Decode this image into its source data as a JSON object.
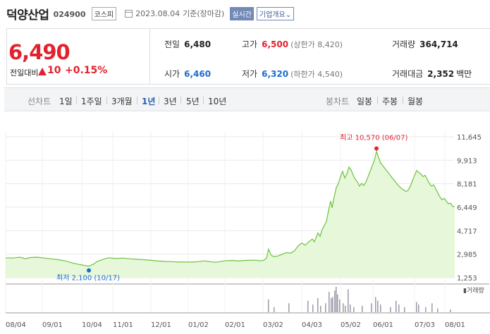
{
  "header": {
    "name": "덕양산업",
    "code": "024900",
    "market": "코스피",
    "date": "2023.08.04",
    "basis": "기준(장마감)",
    "realtime_label": "실시간",
    "company_label": "기업개요"
  },
  "price": {
    "current": "6,490",
    "prev_label": "전일대비",
    "change": "10",
    "change_pct": "+0.15%"
  },
  "stats": {
    "prev_close_label": "전일",
    "prev_close": "6,480",
    "high_label": "고가",
    "high": "6,500",
    "upper_limit": "(상한가 8,420)",
    "volume_label": "거래량",
    "volume": "364,714",
    "open_label": "시가",
    "open": "6,460",
    "low_label": "저가",
    "low": "6,320",
    "lower_limit": "(하한가 4,540)",
    "amount_label": "거래대금",
    "amount": "2,352",
    "amount_unit": "백만"
  },
  "period_bar": {
    "line_label": "선차트",
    "periods": [
      "1일",
      "1주일",
      "3개월",
      "1년",
      "3년",
      "5년",
      "10년"
    ],
    "active": "1년",
    "candle_label": "봉차트",
    "candles": [
      "일봉",
      "주봉",
      "월봉"
    ]
  },
  "chart_data": {
    "type": "area",
    "yticks": [
      "11,645",
      "9,913",
      "8,181",
      "6,449",
      "4,717",
      "2,985",
      "1,253"
    ],
    "ylim": [
      1253,
      11645
    ],
    "xticks": [
      "08/04",
      "09/01",
      "10/04",
      "11/01",
      "12/01",
      "01/02",
      "02/01",
      "03/02",
      "04/03",
      "05/02",
      "06/01",
      "07/03",
      "08/01"
    ],
    "high_annotation": "최고 10,570 (06/07)",
    "low_annotation": "최저 2,100 (10/17)",
    "volume_label": "거래량",
    "fill_color": "#e7f7d9",
    "line_color": "#6cc33f",
    "high_color": "#e2232f",
    "low_color": "#1c6bd1",
    "series": [
      {
        "values": [
          {
            "x": 0,
            "y": 2720
          },
          {
            "x": 10,
            "y": 2700
          },
          {
            "x": 20,
            "y": 2760
          },
          {
            "x": 28,
            "y": 2650
          },
          {
            "x": 36,
            "y": 2740
          },
          {
            "x": 45,
            "y": 2760
          },
          {
            "x": 55,
            "y": 2690
          },
          {
            "x": 65,
            "y": 2640
          },
          {
            "x": 75,
            "y": 2580
          },
          {
            "x": 85,
            "y": 2480
          },
          {
            "x": 95,
            "y": 2330
          },
          {
            "x": 105,
            "y": 2220
          },
          {
            "x": 112,
            "y": 2150
          },
          {
            "x": 118,
            "y": 2100
          },
          {
            "x": 124,
            "y": 2230
          },
          {
            "x": 130,
            "y": 2450
          },
          {
            "x": 138,
            "y": 2600
          },
          {
            "x": 146,
            "y": 2720
          },
          {
            "x": 156,
            "y": 2660
          },
          {
            "x": 166,
            "y": 2700
          },
          {
            "x": 176,
            "y": 2640
          },
          {
            "x": 186,
            "y": 2610
          },
          {
            "x": 196,
            "y": 2580
          },
          {
            "x": 206,
            "y": 2530
          },
          {
            "x": 216,
            "y": 2480
          },
          {
            "x": 226,
            "y": 2450
          },
          {
            "x": 236,
            "y": 2430
          },
          {
            "x": 246,
            "y": 2400
          },
          {
            "x": 256,
            "y": 2400
          },
          {
            "x": 266,
            "y": 2400
          },
          {
            "x": 274,
            "y": 2440
          },
          {
            "x": 282,
            "y": 2490
          },
          {
            "x": 290,
            "y": 2430
          },
          {
            "x": 298,
            "y": 2380
          },
          {
            "x": 306,
            "y": 2460
          },
          {
            "x": 314,
            "y": 2510
          },
          {
            "x": 322,
            "y": 2520
          },
          {
            "x": 330,
            "y": 2480
          },
          {
            "x": 338,
            "y": 2520
          },
          {
            "x": 346,
            "y": 2530
          },
          {
            "x": 354,
            "y": 2540
          },
          {
            "x": 360,
            "y": 2500
          },
          {
            "x": 366,
            "y": 2520
          },
          {
            "x": 370,
            "y": 2700
          },
          {
            "x": 373,
            "y": 3350
          },
          {
            "x": 376,
            "y": 2950
          },
          {
            "x": 380,
            "y": 2800
          },
          {
            "x": 386,
            "y": 2850
          },
          {
            "x": 392,
            "y": 2960
          },
          {
            "x": 398,
            "y": 3100
          },
          {
            "x": 404,
            "y": 3050
          },
          {
            "x": 410,
            "y": 3250
          },
          {
            "x": 415,
            "y": 3600
          },
          {
            "x": 420,
            "y": 3800
          },
          {
            "x": 425,
            "y": 3650
          },
          {
            "x": 430,
            "y": 3900
          },
          {
            "x": 435,
            "y": 4100
          },
          {
            "x": 438,
            "y": 3900
          },
          {
            "x": 441,
            "y": 4300
          },
          {
            "x": 443,
            "y": 4550
          },
          {
            "x": 446,
            "y": 4300
          },
          {
            "x": 449,
            "y": 4800
          },
          {
            "x": 452,
            "y": 5100
          },
          {
            "x": 455,
            "y": 5400
          },
          {
            "x": 458,
            "y": 6200
          },
          {
            "x": 461,
            "y": 6900
          },
          {
            "x": 463,
            "y": 6400
          },
          {
            "x": 466,
            "y": 7200
          },
          {
            "x": 469,
            "y": 7900
          },
          {
            "x": 472,
            "y": 8200
          },
          {
            "x": 475,
            "y": 8700
          },
          {
            "x": 478,
            "y": 9100
          },
          {
            "x": 481,
            "y": 8600
          },
          {
            "x": 484,
            "y": 8900
          },
          {
            "x": 487,
            "y": 9400
          },
          {
            "x": 490,
            "y": 9200
          },
          {
            "x": 493,
            "y": 8800
          },
          {
            "x": 496,
            "y": 8500
          },
          {
            "x": 499,
            "y": 8300
          },
          {
            "x": 502,
            "y": 8000
          },
          {
            "x": 505,
            "y": 8200
          },
          {
            "x": 508,
            "y": 8050
          },
          {
            "x": 511,
            "y": 8300
          },
          {
            "x": 514,
            "y": 8700
          },
          {
            "x": 517,
            "y": 9100
          },
          {
            "x": 520,
            "y": 9500
          },
          {
            "x": 523,
            "y": 9900
          },
          {
            "x": 526,
            "y": 10570
          },
          {
            "x": 529,
            "y": 10100
          },
          {
            "x": 532,
            "y": 9700
          },
          {
            "x": 535,
            "y": 9500
          },
          {
            "x": 538,
            "y": 9300
          },
          {
            "x": 541,
            "y": 9100
          },
          {
            "x": 544,
            "y": 8900
          },
          {
            "x": 547,
            "y": 8700
          },
          {
            "x": 550,
            "y": 8500
          },
          {
            "x": 553,
            "y": 8300
          },
          {
            "x": 556,
            "y": 8100
          },
          {
            "x": 559,
            "y": 7950
          },
          {
            "x": 562,
            "y": 7800
          },
          {
            "x": 565,
            "y": 7700
          },
          {
            "x": 568,
            "y": 7600
          },
          {
            "x": 571,
            "y": 7700
          },
          {
            "x": 574,
            "y": 8000
          },
          {
            "x": 577,
            "y": 8400
          },
          {
            "x": 580,
            "y": 8800
          },
          {
            "x": 583,
            "y": 9150
          },
          {
            "x": 586,
            "y": 9000
          },
          {
            "x": 589,
            "y": 8900
          },
          {
            "x": 592,
            "y": 8700
          },
          {
            "x": 595,
            "y": 8800
          },
          {
            "x": 598,
            "y": 8500
          },
          {
            "x": 601,
            "y": 8200
          },
          {
            "x": 604,
            "y": 8000
          },
          {
            "x": 607,
            "y": 8100
          },
          {
            "x": 610,
            "y": 7800
          },
          {
            "x": 613,
            "y": 7500
          },
          {
            "x": 616,
            "y": 7200
          },
          {
            "x": 619,
            "y": 7000
          },
          {
            "x": 622,
            "y": 7100
          },
          {
            "x": 625,
            "y": 6900
          },
          {
            "x": 628,
            "y": 6700
          },
          {
            "x": 631,
            "y": 6750
          },
          {
            "x": 634,
            "y": 6500
          },
          {
            "x": 637,
            "y": 6490
          }
        ]
      }
    ],
    "volume": [
      {
        "x": 372,
        "v": 0.5
      },
      {
        "x": 380,
        "v": 0.2
      },
      {
        "x": 401,
        "v": 0.35
      },
      {
        "x": 428,
        "v": 0.45
      },
      {
        "x": 435,
        "v": 0.3
      },
      {
        "x": 442,
        "v": 0.55
      },
      {
        "x": 446,
        "v": 0.25
      },
      {
        "x": 453,
        "v": 0.35
      },
      {
        "x": 458,
        "v": 0.8
      },
      {
        "x": 461,
        "v": 0.55
      },
      {
        "x": 463,
        "v": 0.6
      },
      {
        "x": 466,
        "v": 0.85
      },
      {
        "x": 468,
        "v": 1.0
      },
      {
        "x": 470,
        "v": 0.7
      },
      {
        "x": 473,
        "v": 0.5
      },
      {
        "x": 478,
        "v": 0.35
      },
      {
        "x": 481,
        "v": 0.25
      },
      {
        "x": 485,
        "v": 0.9
      },
      {
        "x": 488,
        "v": 0.3
      },
      {
        "x": 493,
        "v": 0.2
      },
      {
        "x": 505,
        "v": 0.25
      },
      {
        "x": 518,
        "v": 0.35
      },
      {
        "x": 524,
        "v": 0.6
      },
      {
        "x": 527,
        "v": 0.45
      },
      {
        "x": 531,
        "v": 0.3
      },
      {
        "x": 545,
        "v": 0.2
      },
      {
        "x": 553,
        "v": 0.45
      },
      {
        "x": 557,
        "v": 0.3
      },
      {
        "x": 565,
        "v": 0.2
      },
      {
        "x": 582,
        "v": 0.4
      },
      {
        "x": 585,
        "v": 0.3
      },
      {
        "x": 595,
        "v": 0.2
      },
      {
        "x": 604,
        "v": 0.35
      },
      {
        "x": 612,
        "v": 0.15
      },
      {
        "x": 630,
        "v": 0.1
      }
    ]
  }
}
